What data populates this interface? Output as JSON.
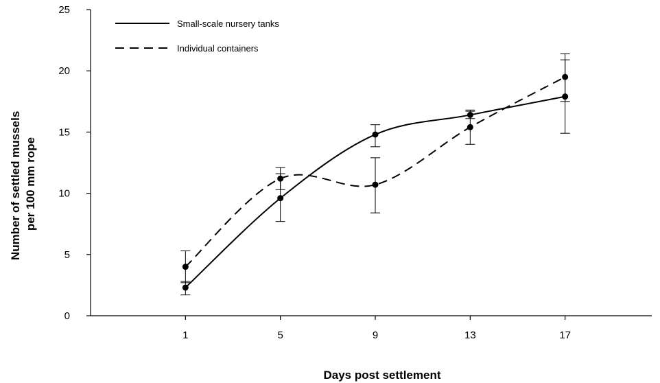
{
  "chart_data": {
    "type": "line",
    "x": [
      1,
      5,
      9,
      13,
      17
    ],
    "xticks": [
      "1",
      "5",
      "9",
      "13",
      "17"
    ],
    "xlim": [
      -3,
      21
    ],
    "ylim": [
      0,
      25
    ],
    "yticks": [
      "0",
      "5",
      "10",
      "15",
      "20",
      "25"
    ],
    "xlabel": "Days post settlement",
    "ylabel": [
      "Number of settled mussels",
      "per 100 mm rope"
    ],
    "grid": false,
    "legend_position": "top-left",
    "series": [
      {
        "name": "Small-scale nursery tanks",
        "style": "solid",
        "color": "#000000",
        "values": [
          2.3,
          9.6,
          14.8,
          16.4,
          17.9
        ],
        "error_low": [
          1.7,
          7.7,
          13.8,
          16.1,
          14.9
        ],
        "error_high": [
          2.8,
          11.6,
          15.6,
          16.7,
          20.9
        ]
      },
      {
        "name": "Individual containers",
        "style": "dashed",
        "color": "#000000",
        "values": [
          4.0,
          11.2,
          10.7,
          15.4,
          19.5
        ],
        "error_low": [
          2.7,
          10.3,
          8.4,
          14.0,
          17.5
        ],
        "error_high": [
          5.3,
          12.1,
          12.9,
          16.8,
          21.4
        ]
      }
    ]
  }
}
